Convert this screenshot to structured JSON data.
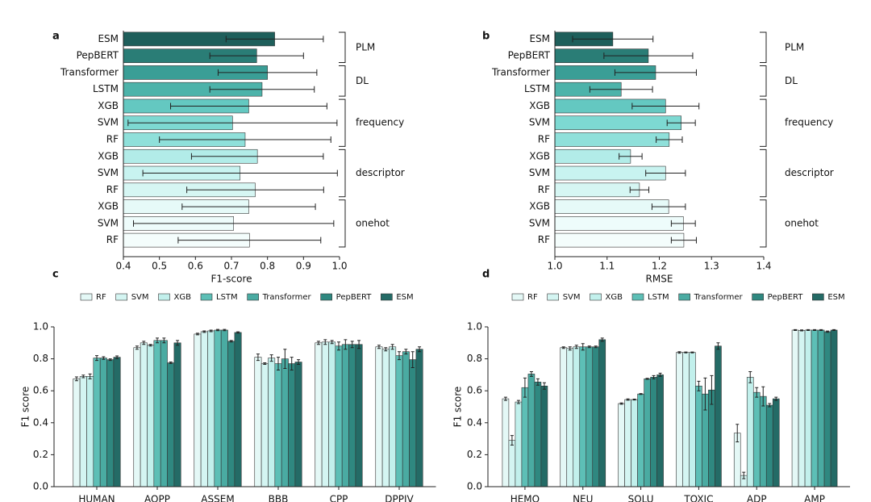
{
  "chart_data": [
    {
      "type": "barh",
      "panel_label": "a",
      "xlabel": "F1-score",
      "xlim": [
        0.4,
        1.0
      ],
      "xticks": [
        0.4,
        0.5,
        0.6,
        0.7,
        0.8,
        0.9,
        {
          "value": 1.0,
          "label": "1.0"
        }
      ],
      "groups": [
        {
          "label": "PLM",
          "categories": [
            "ESM",
            "PepBERT"
          ],
          "values": [
            0.82,
            0.77
          ],
          "errors": [
            0.135,
            0.13
          ],
          "colors": [
            "#1f5f5b",
            "#2a7d76"
          ]
        },
        {
          "label": "DL",
          "categories": [
            "Transformer",
            "LSTM"
          ],
          "values": [
            0.8,
            0.785
          ],
          "errors": [
            0.137,
            0.145
          ],
          "colors": [
            "#3a9e96",
            "#4db3aa"
          ]
        },
        {
          "label": "frequency",
          "categories": [
            "XGB",
            "SVM",
            "RF"
          ],
          "values": [
            0.748,
            0.703,
            0.738
          ],
          "errors": [
            0.217,
            0.29,
            0.238
          ],
          "colors": [
            "#64c8c1",
            "#7dd9d2",
            "#8fe0da"
          ]
        },
        {
          "label": "descriptor",
          "categories": [
            "XGB",
            "SVM",
            "RF"
          ],
          "values": [
            0.772,
            0.724,
            0.766
          ],
          "errors": [
            0.183,
            0.27,
            0.19
          ],
          "colors": [
            "#b2ece8",
            "#c8f3f0",
            "#d6f6f3"
          ]
        },
        {
          "label": "onehot",
          "categories": [
            "XGB",
            "SVM",
            "RF"
          ],
          "values": [
            0.748,
            0.706,
            0.75
          ],
          "errors": [
            0.185,
            0.278,
            0.198
          ],
          "colors": [
            "#e6faf8",
            "#eefcfb",
            "#f4fdfc"
          ]
        }
      ]
    },
    {
      "type": "barh",
      "panel_label": "b",
      "xlabel": "RMSE",
      "xlim": [
        1.0,
        1.4
      ],
      "xticks": [
        {
          "value": 1.0,
          "label": "1.0"
        },
        1.1,
        1.2,
        1.3,
        1.4
      ],
      "groups": [
        {
          "label": "PLM",
          "categories": [
            "ESM",
            "PepBERT"
          ],
          "values": [
            1.111,
            1.179
          ],
          "errors": [
            0.077,
            0.085
          ],
          "colors": [
            "#1f5f5b",
            "#2a7d76"
          ]
        },
        {
          "label": "DL",
          "categories": [
            "Transformer",
            "LSTM"
          ],
          "values": [
            1.193,
            1.127
          ],
          "errors": [
            0.078,
            0.06
          ],
          "colors": [
            "#3a9e96",
            "#4db3aa"
          ]
        },
        {
          "label": "frequency",
          "categories": [
            "XGB",
            "SVM",
            "RF"
          ],
          "values": [
            1.212,
            1.242,
            1.219
          ],
          "errors": [
            0.064,
            0.027,
            0.025
          ],
          "colors": [
            "#64c8c1",
            "#7dd9d2",
            "#8fe0da"
          ]
        },
        {
          "label": "descriptor",
          "categories": [
            "XGB",
            "SVM",
            "RF"
          ],
          "values": [
            1.145,
            1.212,
            1.162
          ],
          "errors": [
            0.022,
            0.038,
            0.018
          ],
          "colors": [
            "#b2ece8",
            "#c8f3f0",
            "#d6f6f3"
          ]
        },
        {
          "label": "onehot",
          "categories": [
            "XGB",
            "SVM",
            "RF"
          ],
          "values": [
            1.218,
            1.246,
            1.247
          ],
          "errors": [
            0.032,
            0.023,
            0.024
          ],
          "colors": [
            "#e6faf8",
            "#eefcfb",
            "#f4fdfc"
          ]
        }
      ]
    },
    {
      "type": "bar",
      "panel_label": "c",
      "ylabel": "F1 score",
      "ylim": [
        0,
        1
      ],
      "yticks": [
        {
          "value": 0,
          "label": "0.0"
        },
        0.2,
        0.4,
        0.6,
        0.8,
        {
          "value": 1,
          "label": "1.0"
        }
      ],
      "categories": [
        "HUMAN",
        "AOPP",
        "ASSEM",
        "BBB",
        "CPP",
        "DPPIV"
      ],
      "series": [
        {
          "name": "RF",
          "color": "#e4f8f6",
          "values": [
            0.675,
            0.87,
            0.955,
            0.81,
            0.9,
            0.875
          ],
          "errors": [
            0.012,
            0.01,
            0.005,
            0.02,
            0.01,
            0.01
          ]
        },
        {
          "name": "SVM",
          "color": "#d4f5f2",
          "values": [
            0.69,
            0.9,
            0.97,
            0.77,
            0.905,
            0.86
          ],
          "errors": [
            0.008,
            0.01,
            0.005,
            0.005,
            0.015,
            0.01
          ]
        },
        {
          "name": "XGB",
          "color": "#c2f0ec",
          "values": [
            0.69,
            0.885,
            0.975,
            0.805,
            0.905,
            0.875
          ],
          "errors": [
            0.015,
            0.005,
            0.005,
            0.02,
            0.01,
            0.015
          ]
        },
        {
          "name": "LSTM",
          "color": "#5dbfb6",
          "values": [
            0.805,
            0.915,
            0.98,
            0.77,
            0.88,
            0.82
          ],
          "errors": [
            0.015,
            0.015,
            0.004,
            0.04,
            0.025,
            0.025
          ]
        },
        {
          "name": "Transformer",
          "color": "#4aaba2",
          "values": [
            0.805,
            0.915,
            0.98,
            0.8,
            0.89,
            0.845
          ],
          "errors": [
            0.008,
            0.015,
            0.004,
            0.06,
            0.03,
            0.015
          ]
        },
        {
          "name": "PepBERT",
          "color": "#2f8880",
          "values": [
            0.795,
            0.775,
            0.91,
            0.77,
            0.89,
            0.795
          ],
          "errors": [
            0.005,
            0.005,
            0.005,
            0.04,
            0.02,
            0.05
          ]
        },
        {
          "name": "ESM",
          "color": "#246b66",
          "values": [
            0.81,
            0.9,
            0.965,
            0.78,
            0.89,
            0.86
          ],
          "errors": [
            0.008,
            0.015,
            0.004,
            0.015,
            0.025,
            0.015
          ]
        }
      ]
    },
    {
      "type": "bar",
      "panel_label": "d",
      "ylabel": "F1 score",
      "ylim": [
        0,
        1
      ],
      "yticks": [
        {
          "value": 0,
          "label": "0.0"
        },
        0.2,
        0.4,
        0.6,
        0.8,
        {
          "value": 1,
          "label": "1.0"
        }
      ],
      "categories": [
        "HEMO",
        "NEU",
        "SOLU",
        "TOXIC",
        "ADP",
        "AMP"
      ],
      "series": [
        {
          "name": "RF",
          "color": "#e4f8f6",
          "values": [
            0.55,
            0.87,
            0.52,
            0.84,
            0.335,
            0.98
          ],
          "errors": [
            0.01,
            0.005,
            0.004,
            0.005,
            0.055,
            0.003
          ]
        },
        {
          "name": "SVM",
          "color": "#d4f5f2",
          "values": [
            0.29,
            0.865,
            0.545,
            0.84,
            0.07,
            0.978
          ],
          "errors": [
            0.03,
            0.01,
            0.004,
            0.003,
            0.02,
            0.003
          ]
        },
        {
          "name": "XGB",
          "color": "#c2f0ec",
          "values": [
            0.53,
            0.875,
            0.545,
            0.84,
            0.685,
            0.98
          ],
          "errors": [
            0.01,
            0.01,
            0.003,
            0.003,
            0.035,
            0.003
          ]
        },
        {
          "name": "LSTM",
          "color": "#5dbfb6",
          "values": [
            0.62,
            0.875,
            0.58,
            0.63,
            0.59,
            0.98
          ],
          "errors": [
            0.06,
            0.02,
            0.003,
            0.03,
            0.03,
            0.003
          ]
        },
        {
          "name": "Transformer",
          "color": "#4aaba2",
          "values": [
            0.705,
            0.875,
            0.675,
            0.58,
            0.565,
            0.98
          ],
          "errors": [
            0.015,
            0.005,
            0.003,
            0.1,
            0.06,
            0.003
          ]
        },
        {
          "name": "PepBERT",
          "color": "#2f8880",
          "values": [
            0.655,
            0.875,
            0.685,
            0.605,
            0.51,
            0.97
          ],
          "errors": [
            0.02,
            0.005,
            0.01,
            0.09,
            0.01,
            0.004
          ]
        },
        {
          "name": "ESM",
          "color": "#246b66",
          "values": [
            0.63,
            0.92,
            0.7,
            0.88,
            0.55,
            0.98
          ],
          "errors": [
            0.02,
            0.01,
            0.01,
            0.02,
            0.01,
            0.003
          ]
        }
      ]
    }
  ]
}
